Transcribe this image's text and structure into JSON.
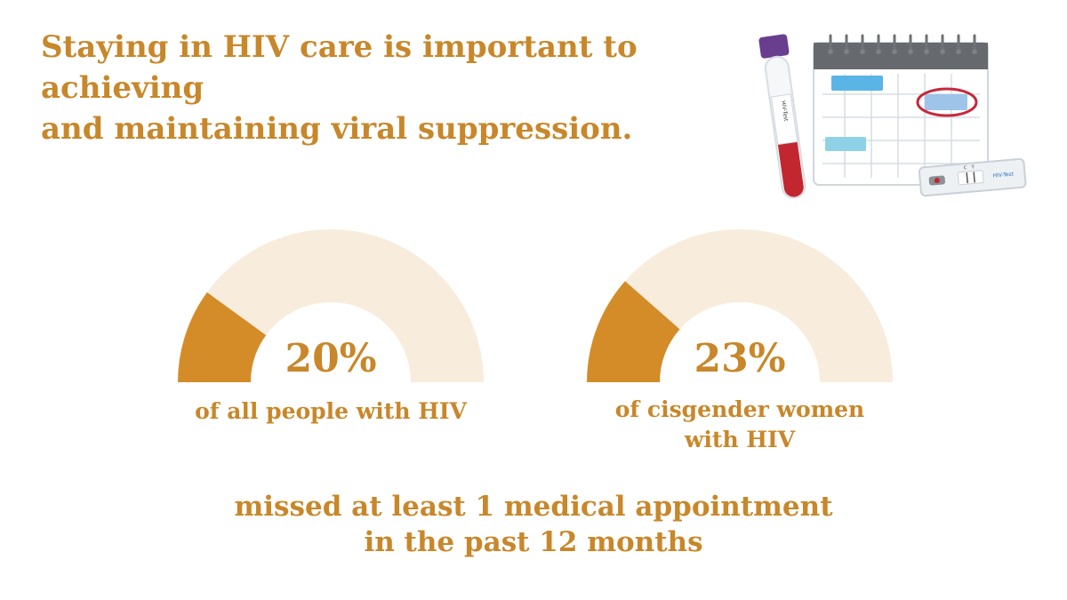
{
  "headline": {
    "line1": "Staying in HIV care is important to achieving",
    "line2": "and maintaining viral suppression."
  },
  "colors": {
    "accent": "#d48c28",
    "track": "#f8ecdc",
    "text": "#c8872a"
  },
  "illustration": {
    "tube_label": "HIV-Test",
    "test_label": "HIV-Test",
    "test_c": "C",
    "test_t": "T",
    "icons": [
      "blood-tube-icon",
      "calendar-icon",
      "test-cassette-icon"
    ]
  },
  "chart_data": [
    {
      "type": "gauge",
      "values": [
        20
      ],
      "max": 100,
      "value_label": "20%",
      "label_lines": [
        "of all people with HIV"
      ]
    },
    {
      "type": "gauge",
      "values": [
        23
      ],
      "max": 100,
      "value_label": "23%",
      "label_lines": [
        "of cisgender women",
        "with HIV"
      ]
    }
  ],
  "footnote": {
    "line1": "missed at least 1 medical appointment",
    "line2": "in the past 12 months"
  }
}
